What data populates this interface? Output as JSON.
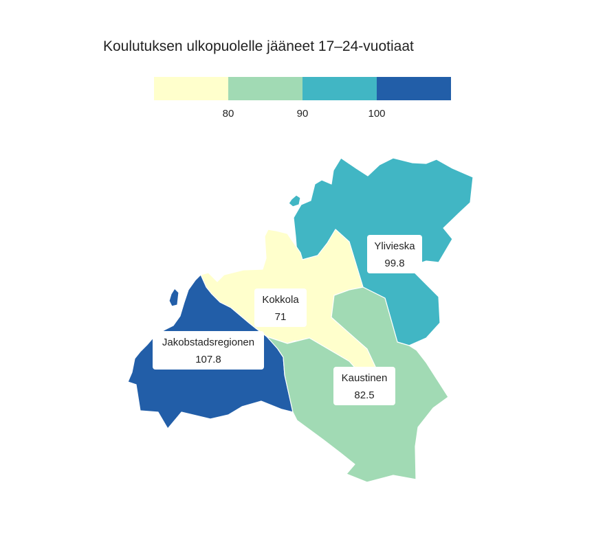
{
  "title": "Koulutuksen ulkopuolelle jääneet 17–24-vuotiaat",
  "legend": {
    "bins": [
      {
        "color": "#ffffcc"
      },
      {
        "color": "#a1dab4"
      },
      {
        "color": "#41b6c4"
      },
      {
        "color": "#225ea8"
      }
    ],
    "ticks": [
      "80",
      "90",
      "100"
    ]
  },
  "regions": [
    {
      "name": "Ylivieska",
      "value": "99.8",
      "color": "#41b6c4"
    },
    {
      "name": "Kokkola",
      "value": "71",
      "color": "#ffffcc"
    },
    {
      "name": "Jakobstadsregionen",
      "value": "107.8",
      "color": "#225ea8"
    },
    {
      "name": "Kaustinen",
      "value": "82.5",
      "color": "#a1dab4"
    }
  ]
}
